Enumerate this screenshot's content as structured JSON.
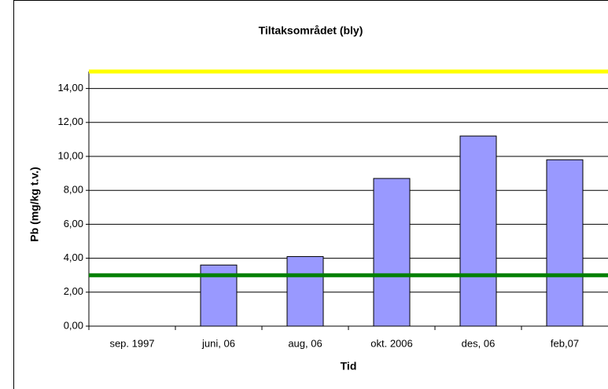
{
  "chart_data": {
    "type": "bar",
    "title": "Tiltaksområdet (bly)",
    "x_label": "Tid",
    "y_label": "Pb (mg/kg t.v.)",
    "categories": [
      "sep. 1997",
      "juni, 06",
      "aug, 06",
      "okt. 2006",
      "des, 06",
      "feb,07"
    ],
    "values": [
      null,
      3.6,
      4.1,
      8.7,
      11.2,
      9.8
    ],
    "color": "#9999ff",
    "ylim": [
      0,
      15
    ],
    "yticks": [
      {
        "value": 0,
        "label": "0,00"
      },
      {
        "value": 2,
        "label": "2,00"
      },
      {
        "value": 4,
        "label": "4,00"
      },
      {
        "value": 6,
        "label": "6,00"
      },
      {
        "value": 8,
        "label": "8,00"
      },
      {
        "value": 10,
        "label": "10,00"
      },
      {
        "value": 12,
        "label": "12,00"
      },
      {
        "value": 14,
        "label": "14,00"
      }
    ],
    "grid": true,
    "reference_lines": [
      {
        "value": 15,
        "color": "#ffff00"
      },
      {
        "value": 3,
        "color": "#008000"
      }
    ]
  }
}
